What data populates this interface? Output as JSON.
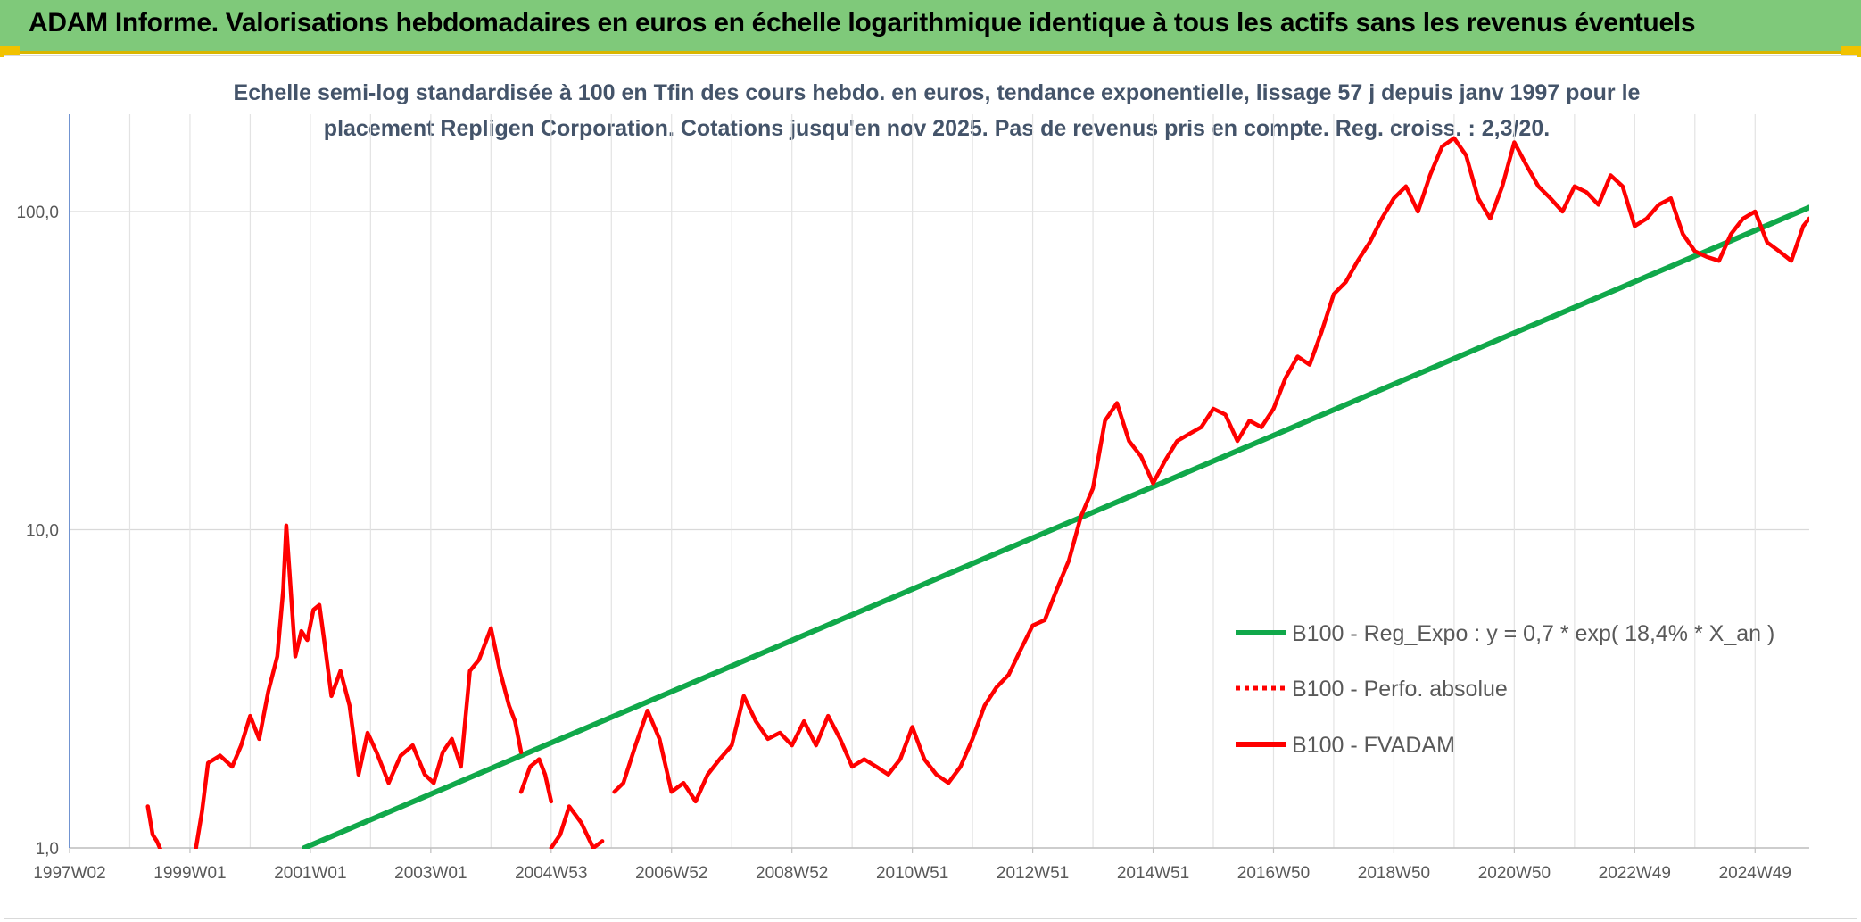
{
  "header": {
    "title": "ADAM Informe. Valorisations hebdomadaires en euros en échelle logarithmique identique à tous les actifs sans les revenus éventuels"
  },
  "colors": {
    "banner": "#7fc97a",
    "fvadam": "#ff0000",
    "regression": "#10a84a",
    "title_text": "#44546a"
  },
  "chart_data": {
    "type": "line",
    "title_line1": "Echelle semi-log standardisée à 100 en Tfin des cours hebdo. en euros, tendance exponentielle, lissage 57 j depuis janv 1997 pour le",
    "title_line2": "placement Repligen Corporation. Cotations jusqu'en nov 2025. Pas de revenus pris en compte. Reg. croiss. : 2,3/20.",
    "y_scale": "log",
    "ylim": [
      1,
      180
    ],
    "y_ticks": [
      {
        "value": 1,
        "label": "1,0"
      },
      {
        "value": 10,
        "label": "10,0"
      },
      {
        "value": 100,
        "label": "100,0"
      }
    ],
    "xlim": [
      1997.0,
      2025.9
    ],
    "x_ticks": [
      {
        "value": 1997.0,
        "label": "1997W02"
      },
      {
        "value": 1999.0,
        "label": "1999W01"
      },
      {
        "value": 2001.0,
        "label": "2001W01"
      },
      {
        "value": 2003.0,
        "label": "2003W01"
      },
      {
        "value": 2005.0,
        "label": "2004W53"
      },
      {
        "value": 2007.0,
        "label": "2006W52"
      },
      {
        "value": 2009.0,
        "label": "2008W52"
      },
      {
        "value": 2011.0,
        "label": "2010W51"
      },
      {
        "value": 2013.0,
        "label": "2012W51"
      },
      {
        "value": 2015.0,
        "label": "2014W51"
      },
      {
        "value": 2017.0,
        "label": "2016W50"
      },
      {
        "value": 2019.0,
        "label": "2018W50"
      },
      {
        "value": 2021.0,
        "label": "2020W50"
      },
      {
        "value": 2023.0,
        "label": "2022W49"
      },
      {
        "value": 2025.0,
        "label": "2024W49"
      }
    ],
    "grid": true,
    "legend_position": "right",
    "series": [
      {
        "name": "B100 - Reg_Expo : y = 0,7 * exp( 18,4% *  X_an )",
        "style": "solid",
        "color": "#10a84a",
        "x": [
          2000.9,
          2025.9
        ],
        "y": [
          1.0,
          103
        ]
      },
      {
        "name": "B100 - Perfo. absolue",
        "style": "dotted",
        "color": "#ff0000",
        "x": [],
        "y": []
      },
      {
        "name": "B100 - FVADAM",
        "style": "solid",
        "color": "#ff0000",
        "segments": [
          {
            "x": [
              1998.3,
              1998.38,
              1998.45,
              1998.55
            ],
            "y": [
              1.35,
              1.1,
              1.05,
              0.95
            ]
          },
          {
            "x": [
              1999.1,
              1999.2,
              1999.3,
              1999.5,
              1999.7,
              1999.85,
              2000.0,
              2000.15,
              2000.3,
              2000.45,
              2000.55,
              2000.6,
              2000.65,
              2000.75,
              2000.85,
              2000.95,
              2001.05,
              2001.15,
              2001.25,
              2001.35,
              2001.5,
              2001.65,
              2001.8,
              2001.95,
              2002.1,
              2002.3,
              2002.5,
              2002.7,
              2002.9,
              2003.05,
              2003.2,
              2003.35,
              2003.5,
              2003.65,
              2003.8,
              2004.0,
              2004.15,
              2004.3,
              2004.4,
              2004.5
            ],
            "y": [
              1.0,
              1.3,
              1.85,
              1.95,
              1.8,
              2.1,
              2.6,
              2.2,
              3.1,
              4.0,
              6.5,
              10.3,
              7.5,
              4.0,
              4.8,
              4.5,
              5.6,
              5.8,
              4.2,
              3.0,
              3.6,
              2.8,
              1.7,
              2.3,
              2.0,
              1.6,
              1.95,
              2.1,
              1.7,
              1.6,
              2.0,
              2.2,
              1.8,
              3.6,
              3.9,
              4.9,
              3.6,
              2.8,
              2.5,
              2.0
            ]
          },
          {
            "x": [
              2004.5,
              2004.65,
              2004.8,
              2004.9,
              2005.0
            ],
            "y": [
              1.5,
              1.8,
              1.9,
              1.7,
              1.4
            ]
          },
          {
            "x": [
              2005.0,
              2005.15,
              2005.3,
              2005.5,
              2005.7,
              2005.85
            ],
            "y": [
              1.0,
              1.1,
              1.35,
              1.2,
              1.0,
              1.05
            ]
          },
          {
            "x": [
              2006.05,
              2006.2,
              2006.4,
              2006.6,
              2006.8,
              2007.0,
              2007.2,
              2007.4,
              2007.6,
              2007.8,
              2008.0,
              2008.2,
              2008.4,
              2008.6,
              2008.8,
              2009.0,
              2009.2,
              2009.4,
              2009.6,
              2009.8,
              2010.0,
              2010.2,
              2010.4,
              2010.6,
              2010.8,
              2011.0,
              2011.2,
              2011.4,
              2011.6,
              2011.8,
              2012.0,
              2012.2,
              2012.4,
              2012.6,
              2012.8,
              2013.0,
              2013.2,
              2013.4,
              2013.6,
              2013.8,
              2014.0,
              2014.2,
              2014.4,
              2014.6,
              2014.8,
              2015.0,
              2015.2,
              2015.4,
              2015.6,
              2015.8,
              2016.0,
              2016.2,
              2016.4,
              2016.6,
              2016.8,
              2017.0,
              2017.2,
              2017.4,
              2017.6,
              2017.8,
              2018.0,
              2018.2,
              2018.4,
              2018.6,
              2018.8,
              2019.0,
              2019.2,
              2019.4,
              2019.6,
              2019.8,
              2020.0,
              2020.2,
              2020.4,
              2020.6,
              2020.8,
              2021.0,
              2021.2,
              2021.4,
              2021.6,
              2021.8,
              2022.0,
              2022.2,
              2022.4,
              2022.6,
              2022.8,
              2023.0,
              2023.2,
              2023.4,
              2023.6,
              2023.8,
              2024.0,
              2024.2,
              2024.4,
              2024.6,
              2024.8,
              2025.0,
              2025.2,
              2025.4,
              2025.6,
              2025.8,
              2025.9
            ],
            "y": [
              1.5,
              1.6,
              2.1,
              2.7,
              2.2,
              1.5,
              1.6,
              1.4,
              1.7,
              1.9,
              2.1,
              3.0,
              2.5,
              2.2,
              2.3,
              2.1,
              2.5,
              2.1,
              2.6,
              2.2,
              1.8,
              1.9,
              1.8,
              1.7,
              1.9,
              2.4,
              1.9,
              1.7,
              1.6,
              1.8,
              2.2,
              2.8,
              3.2,
              3.5,
              4.2,
              5.0,
              5.2,
              6.5,
              8.0,
              11.0,
              13.5,
              22.0,
              25.0,
              19.0,
              17.0,
              14.0,
              16.5,
              19.0,
              20.0,
              21.0,
              24.0,
              23.0,
              19.0,
              22.0,
              21.0,
              24.0,
              30.0,
              35.0,
              33.0,
              42.0,
              55.0,
              60.0,
              70.0,
              80.0,
              95.0,
              110.0,
              120.0,
              100.0,
              130.0,
              160.0,
              170.0,
              150.0,
              110.0,
              95.0,
              120.0,
              165.0,
              140.0,
              120.0,
              110.0,
              100.0,
              120.0,
              115.0,
              105.0,
              130.0,
              120.0,
              90.0,
              95.0,
              105.0,
              110.0,
              85.0,
              75.0,
              72.0,
              70.0,
              85.0,
              95.0,
              100.0,
              80.0,
              75.0,
              70.0,
              90.0,
              95.0
            ]
          }
        ]
      }
    ]
  }
}
